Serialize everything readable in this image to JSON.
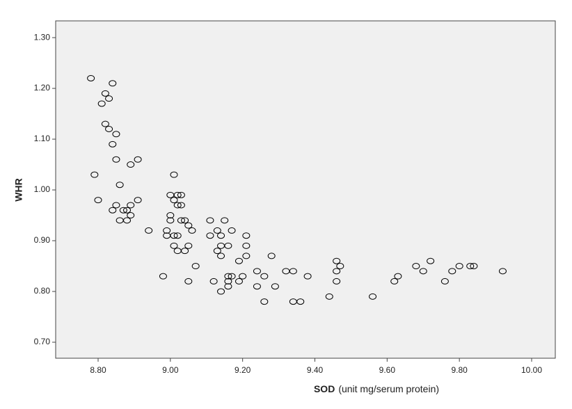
{
  "chart_data": {
    "type": "scatter",
    "ylabel": "WHR",
    "xlabel_parts": [
      "SOD",
      "(unit mg/serum protein)"
    ],
    "x": [
      8.78,
      8.84,
      8.82,
      8.83,
      8.81,
      8.82,
      8.83,
      8.85,
      8.84,
      8.85,
      8.91,
      8.89,
      8.79,
      8.86,
      8.8,
      8.91,
      8.85,
      8.89,
      8.84,
      8.87,
      8.88,
      8.89,
      8.86,
      8.88,
      8.94,
      8.98,
      8.99,
      8.99,
      9.01,
      9.0,
      9.02,
      9.03,
      9.01,
      9.02,
      9.03,
      9.0,
      9.0,
      9.03,
      9.04,
      9.05,
      9.06,
      9.01,
      9.02,
      9.01,
      9.05,
      9.02,
      9.04,
      9.07,
      9.05,
      9.11,
      9.15,
      9.13,
      9.17,
      9.11,
      9.14,
      9.21,
      9.14,
      9.16,
      9.21,
      9.13,
      9.14,
      9.21,
      9.19,
      9.28,
      9.12,
      9.16,
      9.17,
      9.2,
      9.16,
      9.19,
      9.16,
      9.14,
      9.24,
      9.26,
      9.24,
      9.29,
      9.26,
      9.32,
      9.34,
      9.38,
      9.34,
      9.36,
      9.44,
      9.46,
      9.47,
      9.46,
      9.46,
      9.56,
      9.62,
      9.63,
      9.68,
      9.7,
      9.72,
      9.76,
      9.78,
      9.8,
      9.83,
      9.84,
      9.92
    ],
    "series": [
      {
        "name": "WHR",
        "color": "#000000",
        "values": [
          1.22,
          1.21,
          1.19,
          1.18,
          1.17,
          1.13,
          1.12,
          1.11,
          1.09,
          1.06,
          1.06,
          1.05,
          1.03,
          1.01,
          0.98,
          0.98,
          0.97,
          0.97,
          0.96,
          0.96,
          0.96,
          0.95,
          0.94,
          0.94,
          0.92,
          0.83,
          0.92,
          0.91,
          1.03,
          0.99,
          0.99,
          0.99,
          0.98,
          0.97,
          0.97,
          0.95,
          0.94,
          0.94,
          0.94,
          0.93,
          0.92,
          0.91,
          0.91,
          0.89,
          0.89,
          0.88,
          0.88,
          0.85,
          0.82,
          0.94,
          0.94,
          0.92,
          0.92,
          0.91,
          0.91,
          0.91,
          0.89,
          0.89,
          0.89,
          0.88,
          0.87,
          0.87,
          0.86,
          0.87,
          0.82,
          0.83,
          0.83,
          0.83,
          0.82,
          0.82,
          0.81,
          0.8,
          0.84,
          0.83,
          0.81,
          0.81,
          0.78,
          0.84,
          0.84,
          0.83,
          0.78,
          0.78,
          0.79,
          0.86,
          0.85,
          0.84,
          0.82,
          0.79,
          0.82,
          0.83,
          0.85,
          0.84,
          0.86,
          0.82,
          0.84,
          0.85,
          0.85,
          0.85,
          0.84
        ]
      }
    ],
    "xlim": [
      8.6825,
      10.0655
    ],
    "ylim": [
      0.6685,
      1.333
    ],
    "xticks": [
      {
        "value": 8.8,
        "label": "8.80"
      },
      {
        "value": 9.0,
        "label": "9.00"
      },
      {
        "value": 9.2,
        "label": "9.20"
      },
      {
        "value": 9.4,
        "label": "9.40"
      },
      {
        "value": 9.6,
        "label": "9.60"
      },
      {
        "value": 9.8,
        "label": "9.80"
      },
      {
        "value": 10.0,
        "label": "10.00"
      }
    ],
    "yticks": [
      {
        "value": 0.7,
        "label": "0.70"
      },
      {
        "value": 0.8,
        "label": "0.80"
      },
      {
        "value": 0.9,
        "label": "0.90"
      },
      {
        "value": 1.0,
        "label": "1.00"
      },
      {
        "value": 1.1,
        "label": "1.10"
      },
      {
        "value": 1.2,
        "label": "1.20"
      },
      {
        "value": 1.3,
        "label": "1.30"
      }
    ],
    "plot_background": "#f0f0f0"
  }
}
